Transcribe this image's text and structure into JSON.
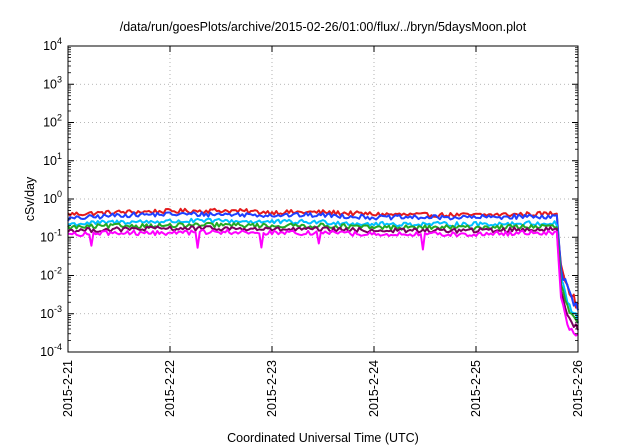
{
  "chart_data": {
    "type": "line",
    "title": "/data/run/goesPlots/archive/2015-02-26/01:00/flux/../bryn/5daysMoon.plot",
    "xlabel": "Coordinated Universal Time (UTC)",
    "ylabel": "cSv/day",
    "x_ticks": [
      "2015-2-21",
      "2015-2-22",
      "2015-2-23",
      "2015-2-24",
      "2015-2-25",
      "2015-2-26"
    ],
    "y_tick_exponents": [
      -4,
      -3,
      -2,
      -1,
      0,
      1,
      2,
      3,
      4
    ],
    "y_tick_base": "10",
    "xlim": [
      "2015-02-21",
      "2015-02-26"
    ],
    "ylim": [
      0.0001,
      10000
    ],
    "y_scale": "log",
    "grid": true,
    "legend": "none",
    "x": [
      "2015-02-21",
      "2015-02-21T12:00",
      "2015-02-22",
      "2015-02-22T12:00",
      "2015-02-23",
      "2015-02-23T12:00",
      "2015-02-24",
      "2015-02-24T12:00",
      "2015-02-25",
      "2015-02-25T12:00",
      "2015-02-25T19:00",
      "2015-02-25T20:00",
      "2015-02-25T22:00",
      "2015-02-26"
    ],
    "series": [
      {
        "color": "#e41a1c",
        "values": [
          0.4,
          0.45,
          0.48,
          0.5,
          0.45,
          0.45,
          0.4,
          0.38,
          0.38,
          0.4,
          0.42,
          0.02,
          0.004,
          0.0015
        ]
      },
      {
        "color": "#1f3fff",
        "values": [
          0.3,
          0.38,
          0.4,
          0.4,
          0.38,
          0.38,
          0.33,
          0.33,
          0.33,
          0.35,
          0.35,
          0.015,
          0.003,
          0.0012
        ]
      },
      {
        "color": "#00bfff",
        "values": [
          0.22,
          0.25,
          0.26,
          0.27,
          0.25,
          0.25,
          0.22,
          0.22,
          0.22,
          0.23,
          0.23,
          0.008,
          0.0015,
          0.0007
        ]
      },
      {
        "color": "#22aa22",
        "values": [
          0.18,
          0.2,
          0.2,
          0.21,
          0.2,
          0.2,
          0.18,
          0.18,
          0.18,
          0.19,
          0.19,
          0.006,
          0.001,
          0.0005
        ]
      },
      {
        "color": "#7b0060",
        "values": [
          0.15,
          0.16,
          0.17,
          0.17,
          0.16,
          0.16,
          0.15,
          0.15,
          0.15,
          0.16,
          0.16,
          0.004,
          0.0008,
          0.0004
        ]
      },
      {
        "color": "#ff00ff",
        "values": [
          0.12,
          0.13,
          0.13,
          0.14,
          0.13,
          0.13,
          0.12,
          0.12,
          0.12,
          0.13,
          0.13,
          0.003,
          0.0004,
          0.0003
        ]
      }
    ]
  }
}
